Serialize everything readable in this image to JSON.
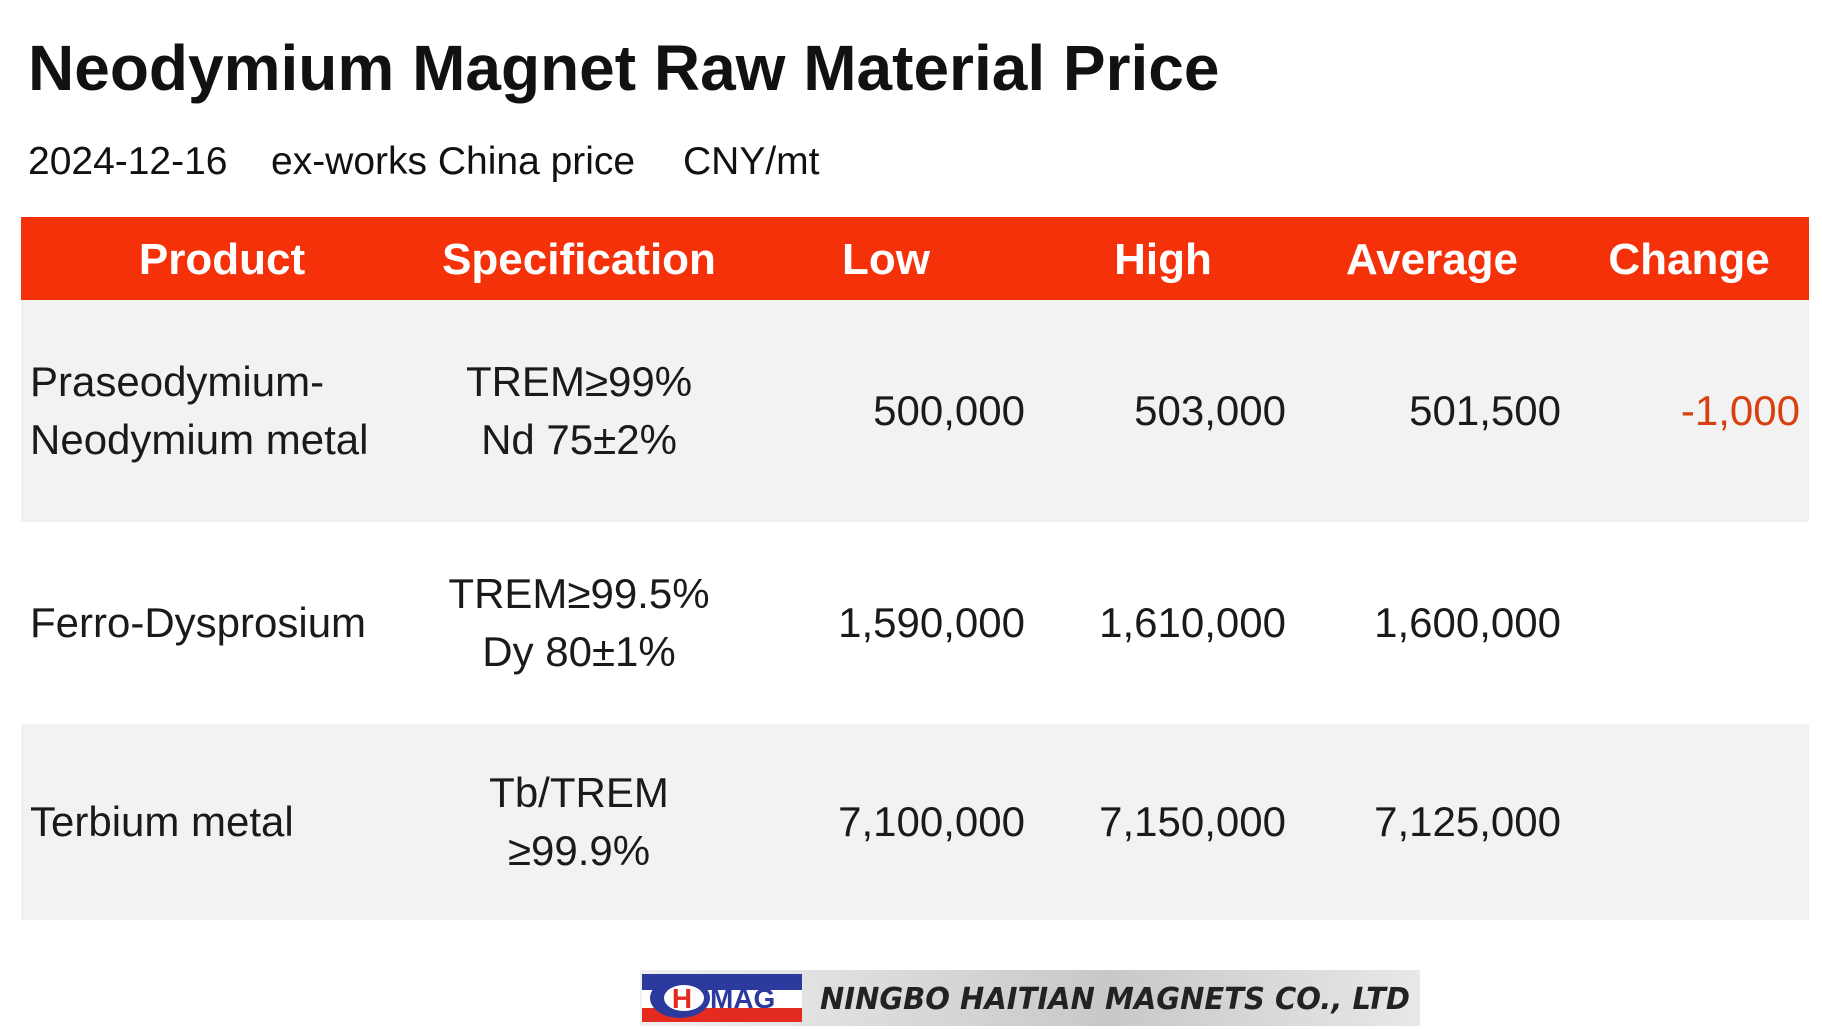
{
  "header": {
    "title": "Neodymium Magnet Raw Material Price",
    "subtitle": [
      "2024-12-16",
      "ex-works China price",
      "CNY/mt"
    ]
  },
  "table": {
    "columns": [
      "Product",
      "Specification",
      "Low",
      "High",
      "Average",
      "Change"
    ],
    "rows": [
      {
        "product": [
          "Praseodymium-",
          "Neodymium metal"
        ],
        "specification": [
          "TREM≥99%",
          "Nd 75±2%"
        ],
        "low": "500,000",
        "high": "503,000",
        "average": "501,500",
        "change": "-1,000"
      },
      {
        "product": [
          "Ferro-Dysprosium"
        ],
        "specification": [
          "TREM≥99.5%",
          "Dy 80±1%"
        ],
        "low": "1,590,000",
        "high": "1,610,000",
        "average": "1,600,000"
      },
      {
        "product": [
          "Terbium metal"
        ],
        "specification": [
          "Tb/TREM",
          "≥99.9%"
        ],
        "low": "7,100,000",
        "high": "7,150,000",
        "average": "7,125,000"
      }
    ]
  },
  "footer": {
    "logo": [
      "H",
      "MAG"
    ],
    "company": "NINGBO HAITIAN MAGNETS CO., LTD"
  }
}
